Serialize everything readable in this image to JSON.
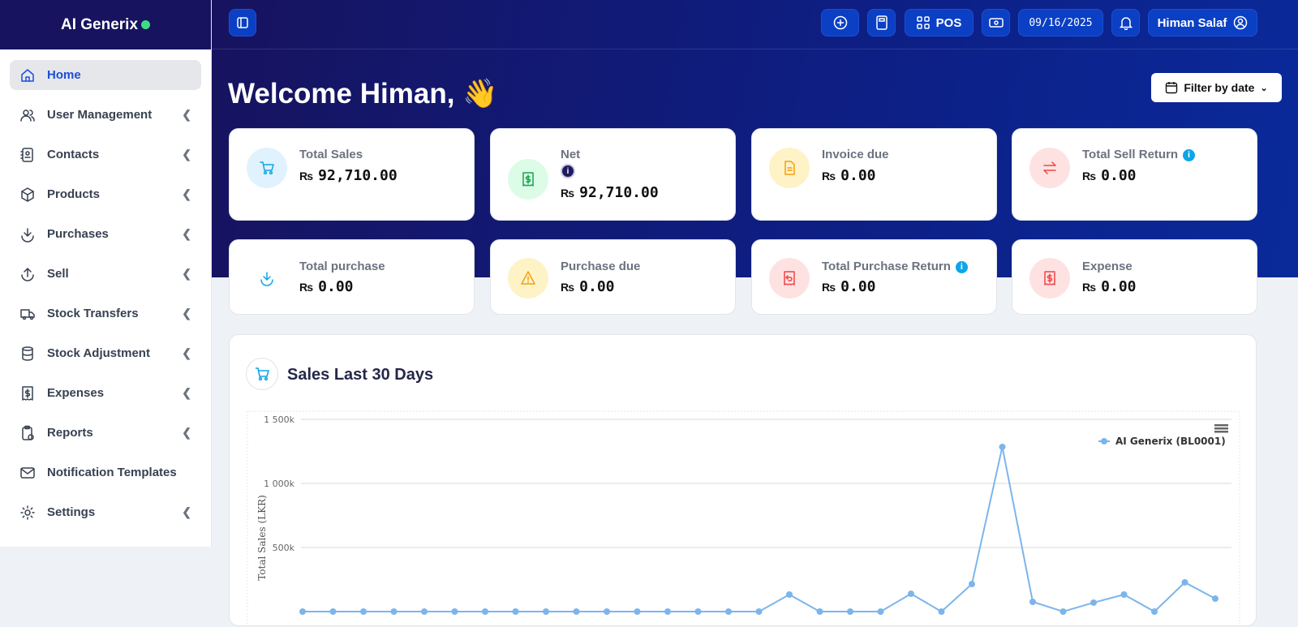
{
  "brand": {
    "name": "AI Generix",
    "status_color": "#3ddc84"
  },
  "sidebar": {
    "items": [
      {
        "label": "Home",
        "icon": "home-icon",
        "active": true,
        "chevron": false
      },
      {
        "label": "User Management",
        "icon": "users-icon",
        "chevron": true
      },
      {
        "label": "Contacts",
        "icon": "contacts-icon",
        "chevron": true
      },
      {
        "label": "Products",
        "icon": "box-icon",
        "chevron": true
      },
      {
        "label": "Purchases",
        "icon": "download-icon",
        "chevron": true
      },
      {
        "label": "Sell",
        "icon": "upload-icon",
        "chevron": true
      },
      {
        "label": "Stock Transfers",
        "icon": "truck-icon",
        "chevron": true
      },
      {
        "label": "Stock Adjustment",
        "icon": "database-icon",
        "chevron": true
      },
      {
        "label": "Expenses",
        "icon": "receipt-icon",
        "chevron": true
      },
      {
        "label": "Reports",
        "icon": "clipboard-icon",
        "chevron": true
      },
      {
        "label": "Notification Templates",
        "icon": "mail-icon",
        "chevron": false
      },
      {
        "label": "Settings",
        "icon": "gear-icon",
        "chevron": true
      }
    ]
  },
  "topbar": {
    "pos_label": "POS",
    "date": "09/16/2025",
    "user": "Himan Salaf"
  },
  "welcome": "Welcome Himan,",
  "welcome_emoji": "👋",
  "filter_label": "Filter by date",
  "currency": "₨",
  "cards": [
    {
      "title": "Total Sales",
      "value": "92,710.00",
      "icon": "cart-icon",
      "bg": "#e0f2fe",
      "fg": "#0ea5e9"
    },
    {
      "title": "Net",
      "value": "92,710.00",
      "icon": "receipt-dollar-icon",
      "bg": "#dcfce7",
      "fg": "#16a34a"
    },
    {
      "title": "Invoice due",
      "value": "0.00",
      "icon": "file-icon",
      "bg": "#fef3c7",
      "fg": "#f59e0b"
    },
    {
      "title": "Total Sell Return",
      "value": "0.00",
      "icon": "swap-icon",
      "bg": "#fee2e2",
      "fg": "#ef4444",
      "info": true
    },
    {
      "title": "Total purchase",
      "value": "0.00",
      "icon": "download-icon",
      "bg": "#ffffff",
      "fg": "#0ea5e9"
    },
    {
      "title": "Purchase due",
      "value": "0.00",
      "icon": "warning-icon",
      "bg": "#fef3c7",
      "fg": "#f59e0b"
    },
    {
      "title": "Total Purchase Return",
      "value": "0.00",
      "icon": "receipt-return-icon",
      "bg": "#fee2e2",
      "fg": "#ef4444",
      "info": true
    },
    {
      "title": "Expense",
      "value": "0.00",
      "icon": "receipt-dollar-icon",
      "bg": "#fee2e2",
      "fg": "#ef4444"
    }
  ],
  "chart_title": "Sales Last 30 Days",
  "chart_data": {
    "type": "line",
    "ylabel": "Total Sales (LKR)",
    "yticks": [
      "1 500k",
      "1 000k",
      "500k"
    ],
    "ytick_values": [
      1500000,
      1000000,
      500000
    ],
    "ylim": [
      0,
      1500000
    ],
    "grid": true,
    "legend": "top-right",
    "series": [
      {
        "name": "AI Generix (BL0001)",
        "color": "#7cb5ec",
        "values": [
          0,
          0,
          0,
          0,
          0,
          0,
          0,
          0,
          0,
          0,
          0,
          0,
          0,
          0,
          0,
          0,
          133000,
          0,
          0,
          0,
          139000,
          0,
          215000,
          1285000,
          76000,
          0,
          70000,
          133000,
          0,
          228000,
          101000
        ]
      }
    ]
  }
}
